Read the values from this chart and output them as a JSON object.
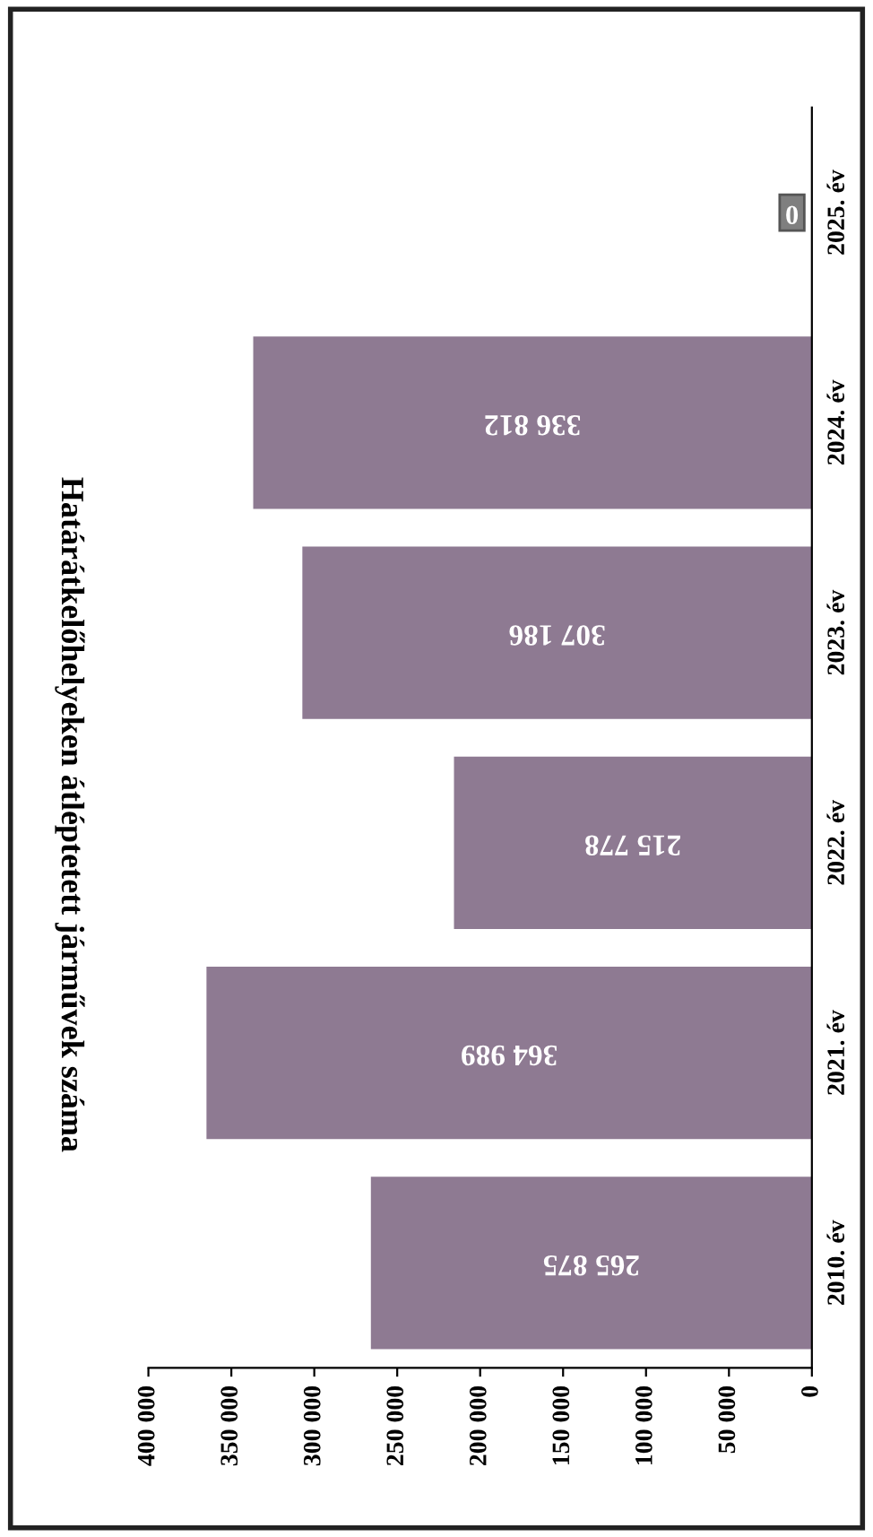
{
  "chart_data": {
    "type": "bar",
    "orientation": "horizontal",
    "title": "Határátkelőhelyeken átléptetett járművek száma",
    "categories": [
      "2025. év",
      "2024. év",
      "2023. év",
      "2022. év",
      "2021. év",
      "2010. év"
    ],
    "values": [
      0,
      336812,
      307186,
      215778,
      364989,
      265875
    ],
    "value_labels": [
      "0",
      "336 812",
      "307 186",
      "215 778",
      "364 989",
      "265 875"
    ],
    "color": "#8e7a92",
    "xlim": [
      400000,
      0
    ],
    "xticks": [
      {
        "value": 400000,
        "label": "400 000"
      },
      {
        "value": 350000,
        "label": "350 000"
      },
      {
        "value": 300000,
        "label": "300 000"
      },
      {
        "value": 250000,
        "label": "250 000"
      },
      {
        "value": 200000,
        "label": "200 000"
      },
      {
        "value": 150000,
        "label": "150 000"
      },
      {
        "value": 100000,
        "label": "100 000"
      },
      {
        "value": 50000,
        "label": "50 000"
      },
      0
    ],
    "grid": false
  }
}
